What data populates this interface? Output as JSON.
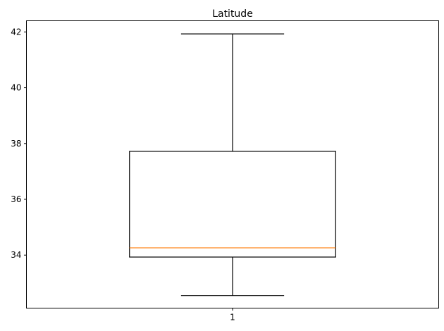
{
  "chart_data": {
    "type": "boxplot",
    "title": "Latitude",
    "xlabel": "",
    "ylabel": "",
    "categories": [
      "1"
    ],
    "ylim": [
      32.1,
      42.4
    ],
    "yticks": [
      34,
      36,
      38,
      40,
      42
    ],
    "ytick_labels": [
      "34",
      "36",
      "38",
      "40",
      "42"
    ],
    "boxes": [
      {
        "label": "1",
        "whisker_low": 32.55,
        "q1": 33.93,
        "median": 34.26,
        "q3": 37.72,
        "whisker_high": 41.93
      }
    ],
    "grid": false,
    "colors": {
      "box": "#000000",
      "median": "#ff7f0e",
      "whisker": "#000000"
    }
  }
}
